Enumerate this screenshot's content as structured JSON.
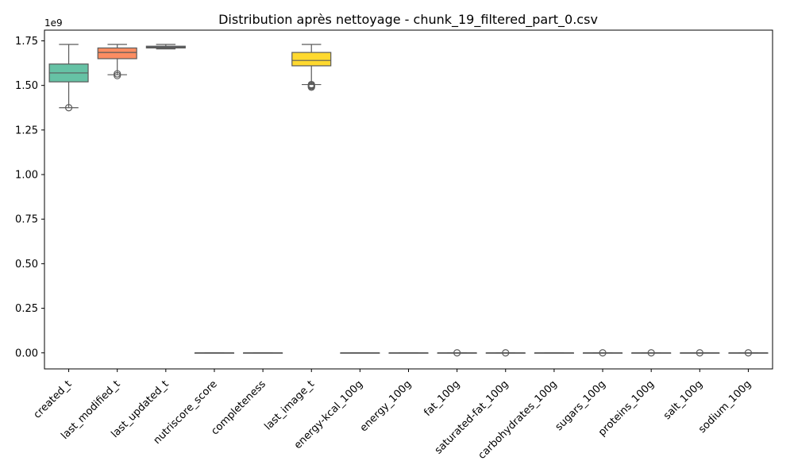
{
  "chart_data": {
    "type": "boxplot",
    "title": "Distribution après nettoyage - chunk_19_filtered_part_0.csv",
    "xlabel": "",
    "ylabel": "",
    "y_scale_label": "1e9",
    "ylim": [
      -0.09,
      1.81
    ],
    "y_ticks": [
      0.0,
      0.25,
      0.5,
      0.75,
      1.0,
      1.25,
      1.5,
      1.75
    ],
    "y_tick_labels": [
      "0.00",
      "0.25",
      "0.50",
      "0.75",
      "1.00",
      "1.25",
      "1.50",
      "1.75"
    ],
    "grid": false,
    "categories": [
      "created_t",
      "last_modified_t",
      "last_updated_t",
      "nutriscore_score",
      "completeness",
      "last_image_t",
      "energy-kcal_100g",
      "energy_100g",
      "fat_100g",
      "saturated-fat_100g",
      "carbohydrates_100g",
      "sugars_100g",
      "proteins_100g",
      "salt_100g",
      "sodium_100g"
    ],
    "series": [
      {
        "category": "created_t",
        "color": "#66c2a5",
        "whislo": 1.375,
        "q1": 1.52,
        "med": 1.57,
        "q3": 1.62,
        "whishi": 1.73,
        "fliers": [
          1.375
        ]
      },
      {
        "category": "last_modified_t",
        "color": "#fc8d62",
        "whislo": 1.56,
        "q1": 1.65,
        "med": 1.685,
        "q3": 1.71,
        "whishi": 1.73,
        "fliers": [
          1.555,
          1.565
        ]
      },
      {
        "category": "last_updated_t",
        "color": "#8da0cb",
        "whislo": 1.705,
        "q1": 1.71,
        "med": 1.715,
        "q3": 1.72,
        "whishi": 1.73,
        "fliers": []
      },
      {
        "category": "nutriscore_score",
        "color": "#e78ac3",
        "whislo": 0,
        "q1": 0,
        "med": 0,
        "q3": 0,
        "whishi": 0,
        "fliers": []
      },
      {
        "category": "completeness",
        "color": "#a6d854",
        "whislo": 0,
        "q1": 0,
        "med": 0,
        "q3": 0,
        "whishi": 0,
        "fliers": []
      },
      {
        "category": "last_image_t",
        "color": "#ffd92f",
        "whislo": 1.505,
        "q1": 1.61,
        "med": 1.64,
        "q3": 1.685,
        "whishi": 1.73,
        "fliers": [
          1.49,
          1.495,
          1.5,
          1.505
        ]
      },
      {
        "category": "energy-kcal_100g",
        "color": "#e5c494",
        "whislo": 0,
        "q1": 0,
        "med": 0,
        "q3": 0,
        "whishi": 0,
        "fliers": []
      },
      {
        "category": "energy_100g",
        "color": "#b3b3b3",
        "whislo": 0,
        "q1": 0,
        "med": 0,
        "q3": 0,
        "whishi": 0,
        "fliers": []
      },
      {
        "category": "fat_100g",
        "color": "#66c2a5",
        "whislo": 0,
        "q1": 0,
        "med": 0,
        "q3": 0,
        "whishi": 0,
        "fliers": [
          0
        ]
      },
      {
        "category": "saturated-fat_100g",
        "color": "#fc8d62",
        "whislo": 0,
        "q1": 0,
        "med": 0,
        "q3": 0,
        "whishi": 0,
        "fliers": [
          0
        ]
      },
      {
        "category": "carbohydrates_100g",
        "color": "#8da0cb",
        "whislo": 0,
        "q1": 0,
        "med": 0,
        "q3": 0,
        "whishi": 0,
        "fliers": []
      },
      {
        "category": "sugars_100g",
        "color": "#e78ac3",
        "whislo": 0,
        "q1": 0,
        "med": 0,
        "q3": 0,
        "whishi": 0,
        "fliers": [
          0
        ]
      },
      {
        "category": "proteins_100g",
        "color": "#a6d854",
        "whislo": 0,
        "q1": 0,
        "med": 0,
        "q3": 0,
        "whishi": 0,
        "fliers": [
          0
        ]
      },
      {
        "category": "salt_100g",
        "color": "#ffd92f",
        "whislo": 0,
        "q1": 0,
        "med": 0,
        "q3": 0,
        "whishi": 0,
        "fliers": [
          0
        ]
      },
      {
        "category": "sodium_100g",
        "color": "#e5c494",
        "whislo": 0,
        "q1": 0,
        "med": 0,
        "q3": 0,
        "whishi": 0,
        "fliers": [
          0
        ]
      }
    ]
  }
}
